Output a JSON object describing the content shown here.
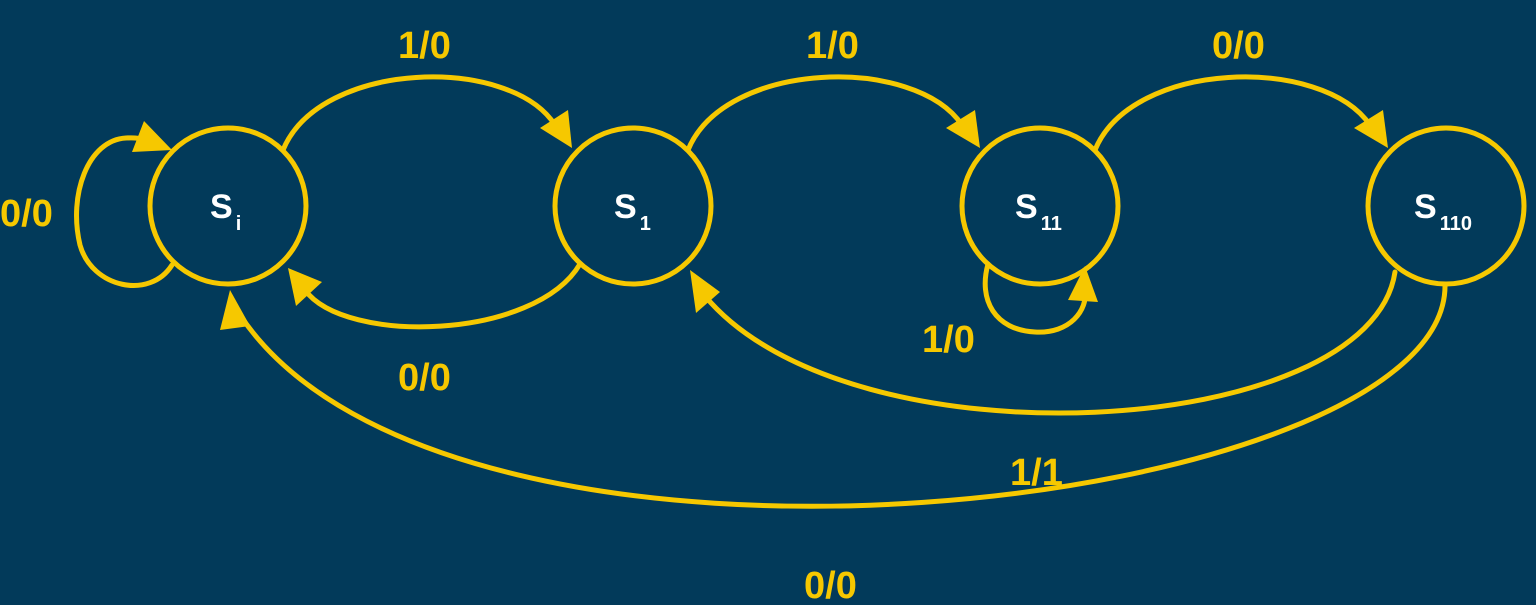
{
  "states": [
    {
      "id": "si",
      "base": "S",
      "sub": "i"
    },
    {
      "id": "s1",
      "base": "S",
      "sub": "1"
    },
    {
      "id": "s11",
      "base": "S",
      "sub": "11"
    },
    {
      "id": "s110",
      "base": "S",
      "sub": "110"
    }
  ],
  "transitions": [
    {
      "from": "Si",
      "to": "Si",
      "label": "0/0"
    },
    {
      "from": "Si",
      "to": "S1",
      "label": "1/0"
    },
    {
      "from": "S1",
      "to": "Si",
      "label": "0/0"
    },
    {
      "from": "S1",
      "to": "S11",
      "label": "1/0"
    },
    {
      "from": "S11",
      "to": "S11",
      "label": "1/0"
    },
    {
      "from": "S11",
      "to": "S110",
      "label": "0/0"
    },
    {
      "from": "S110",
      "to": "S1",
      "label": "1/1"
    },
    {
      "from": "S110",
      "to": "Si",
      "label": "0/0"
    }
  ],
  "colors": {
    "background": "#023a5a",
    "edge": "#f6c800",
    "state_text": "#ffffff"
  }
}
